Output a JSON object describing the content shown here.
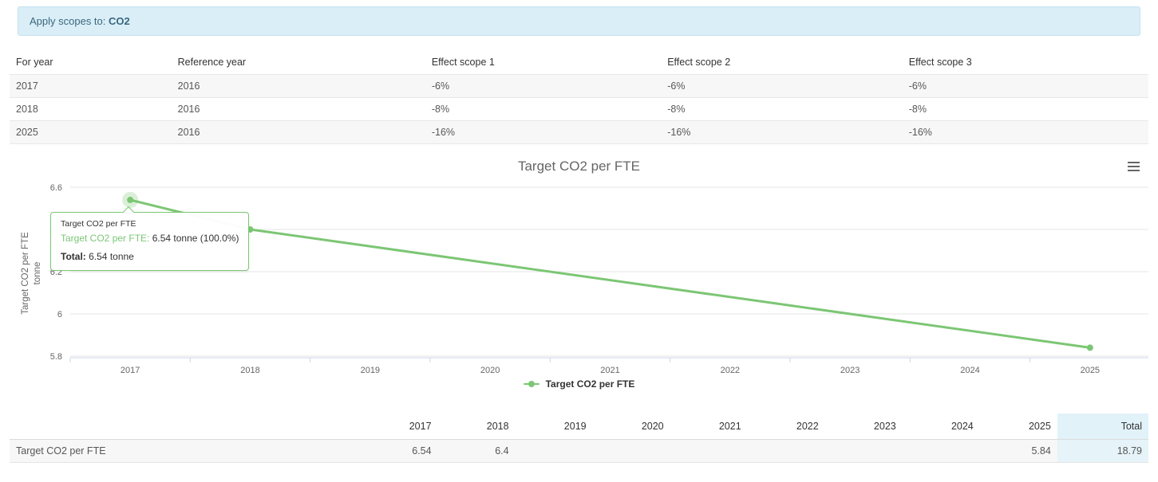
{
  "banner": {
    "prefix": "Apply scopes to: ",
    "value": "CO2"
  },
  "targets_table": {
    "columns": [
      "For year",
      "Reference year",
      "Effect scope 1",
      "Effect scope 2",
      "Effect scope 3"
    ],
    "col_widths": [
      "14.2%",
      "22.3%",
      "20.7%",
      "21.2%",
      "21.6%"
    ],
    "rows": [
      [
        "2017",
        "2016",
        "-6%",
        "-6%",
        "-6%"
      ],
      [
        "2018",
        "2016",
        "-8%",
        "-8%",
        "-8%"
      ],
      [
        "2025",
        "2016",
        "-16%",
        "-16%",
        "-16%"
      ]
    ]
  },
  "chart_data": {
    "type": "line",
    "title": "Target CO2 per FTE",
    "categories": [
      "2017",
      "2018",
      "2019",
      "2020",
      "2021",
      "2022",
      "2023",
      "2024",
      "2025"
    ],
    "series": [
      {
        "name": "Target CO2 per FTE",
        "values": [
          6.54,
          6.4,
          null,
          null,
          null,
          null,
          null,
          null,
          5.84
        ],
        "color": "#7cc674"
      }
    ],
    "ylabel": "Target CO2 per FTE",
    "ylabel_unit": "tonne",
    "xlabel": "",
    "yticks": [
      5.8,
      6,
      6.2,
      6.4,
      6.6
    ],
    "ylim": [
      5.8,
      6.6
    ],
    "grid": true,
    "legend_position": "bottom",
    "hovered_point": {
      "category": "2017",
      "value": 6.54
    }
  },
  "tooltip": {
    "header": "Target CO2 per FTE",
    "series_label": "Target CO2 per FTE:",
    "series_value": "6.54 tonne (100.0%)",
    "total_label": "Total:",
    "total_value": "6.54 tonne"
  },
  "summary_table": {
    "row_label": "Target CO2 per FTE",
    "columns": [
      "2017",
      "2018",
      "2019",
      "2020",
      "2021",
      "2022",
      "2023",
      "2024",
      "2025",
      "Total"
    ],
    "values": [
      "6.54",
      "6.4",
      "",
      "",
      "",
      "",
      "",
      "",
      "5.84",
      "18.79"
    ]
  },
  "icons": {
    "context_menu": "hamburger-icon"
  },
  "colors": {
    "accent_green": "#7cc674",
    "halo_green": "rgba(124,198,116,0.28)",
    "grid": "#e6e6e6",
    "axis": "#ccd6eb",
    "axis_text": "#666666",
    "banner_bg": "#daeef7",
    "banner_border": "#c3e4f0",
    "banner_text": "#3a677e",
    "row_alt_bg": "#f7f7f7",
    "total_header_bg": "#e2f2f9",
    "total_cell_bg": "#e6f3f8"
  }
}
